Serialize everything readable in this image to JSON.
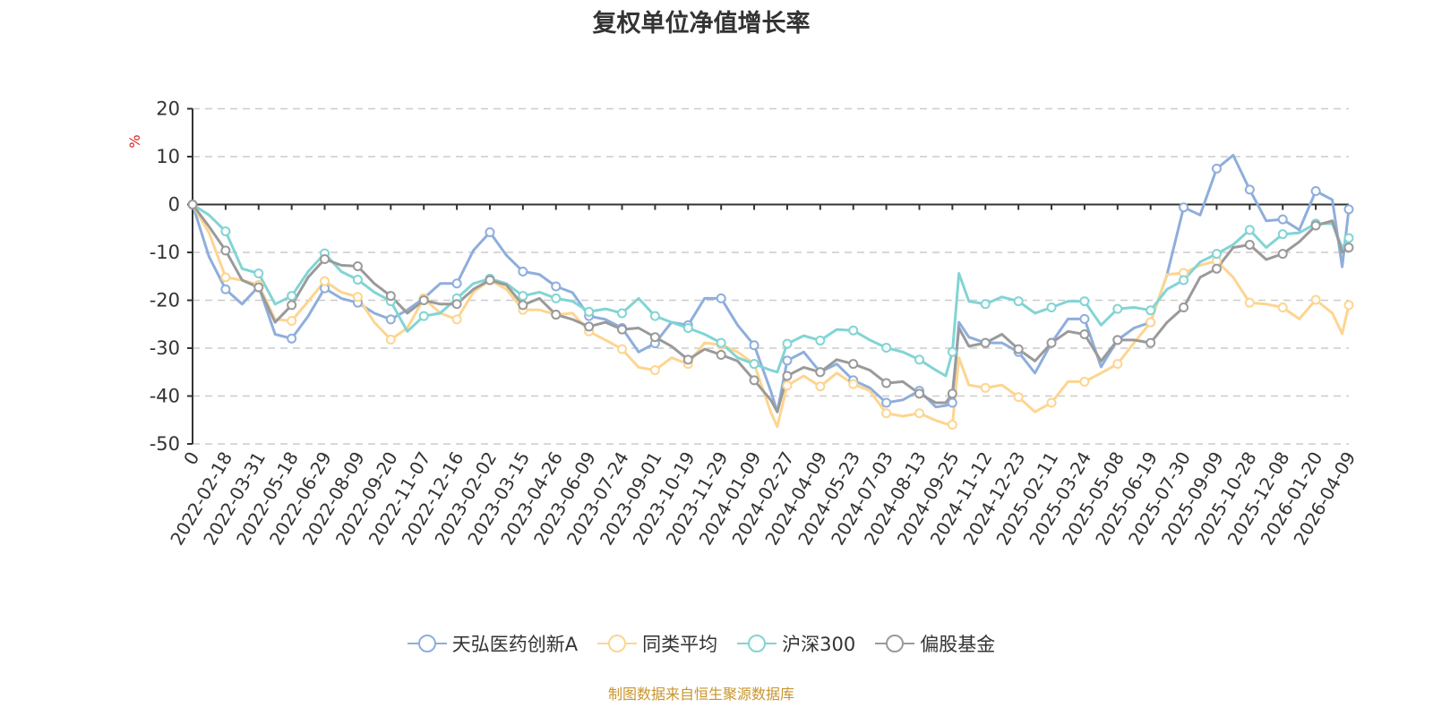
{
  "chart_data": {
    "type": "line",
    "title": "复权单位净值增长率",
    "ylabel": "%",
    "ylim": [
      -50,
      20
    ],
    "yticks": [
      20,
      10,
      0,
      -10,
      -20,
      -30,
      -40,
      -50
    ],
    "grid": true,
    "legend_position": "bottom",
    "x_tick_labels": [
      "0",
      "2022-02-18",
      "2022-03-31",
      "2022-05-18",
      "2022-06-29",
      "2022-08-09",
      "2022-09-20",
      "2022-11-07",
      "2022-12-16",
      "2023-02-02",
      "2023-03-15",
      "2023-04-26",
      "2023-06-09",
      "2023-07-24",
      "2023-09-01",
      "2023-10-19",
      "2023-11-29",
      "2024-01-09",
      "2024-02-27",
      "2024-04-09",
      "2024-05-23",
      "2024-07-03",
      "2024-08-13",
      "2024-09-25",
      "2024-11-12",
      "2024-12-23",
      "2025-02-11",
      "2025-03-24",
      "2025-05-08",
      "2025-06-19",
      "2025-07-30",
      "2025-09-09",
      "2025-10-28",
      "2025-12-08",
      "2026-01-20",
      "2026-04-09"
    ],
    "x": [
      0,
      0.5,
      1,
      1.5,
      2,
      2.5,
      3,
      3.5,
      4,
      4.5,
      5,
      5.5,
      6,
      6.5,
      7,
      7.5,
      8,
      8.5,
      9,
      9.5,
      10,
      10.5,
      11,
      11.5,
      12,
      12.5,
      13,
      13.5,
      14,
      14.5,
      15,
      15.5,
      16,
      16.5,
      17,
      17.5,
      17.7,
      18,
      18.5,
      19,
      19.5,
      20,
      20.5,
      21,
      21.5,
      22,
      22.5,
      22.8,
      23,
      23.2,
      23.5,
      24,
      24.5,
      25,
      25.5,
      26,
      26.5,
      27,
      27.5,
      28,
      28.5,
      29,
      29.5,
      30,
      30.5,
      31,
      31.5,
      32,
      32.5,
      33,
      33.5,
      34,
      34.5,
      34.8,
      35
    ],
    "series": [
      {
        "name": "天弘医药创新A",
        "color": "#8eaedc",
        "values": [
          0,
          -10.9,
          -17.7,
          -20.8,
          -17.1,
          -27.1,
          -28,
          -23.3,
          -17.5,
          -19.6,
          -20.5,
          -22.7,
          -24,
          -22,
          -19.6,
          -16.5,
          -16.5,
          -9.6,
          -5.8,
          -10.6,
          -14,
          -14.6,
          -17.1,
          -18.4,
          -23.3,
          -24,
          -25.8,
          -30.8,
          -29,
          -24.6,
          -25.2,
          -19.6,
          -19.6,
          -25.2,
          -29.4,
          -38.9,
          -43.3,
          -32.6,
          -30.8,
          -35,
          -33.3,
          -36.7,
          -38.3,
          -41.4,
          -40.8,
          -38.9,
          -42.3,
          -42,
          -41.4,
          -24.6,
          -27.7,
          -28.9,
          -28.9,
          -30.8,
          -35.2,
          -28.9,
          -23.9,
          -23.9,
          -33.9,
          -28.3,
          -25.8,
          -24.6,
          -14.6,
          -0.6,
          -2.2,
          7.5,
          10.3,
          3.1,
          -3.4,
          -3.1,
          -5.3,
          2.8,
          1,
          -13,
          -1
        ]
      },
      {
        "name": "同类平均",
        "color": "#fdd590",
        "values": [
          0,
          -5.9,
          -15.2,
          -15.8,
          -16.8,
          -24,
          -24.3,
          -20.2,
          -16,
          -18.3,
          -19.3,
          -24.6,
          -28.2,
          -25.8,
          -19.6,
          -22.7,
          -24,
          -18.3,
          -15.8,
          -17.7,
          -22,
          -22,
          -23,
          -22.7,
          -26.5,
          -28.3,
          -30.2,
          -34,
          -34.6,
          -32,
          -33.3,
          -28.9,
          -29.3,
          -30.8,
          -33.3,
          -43.3,
          -46.4,
          -37.8,
          -35.8,
          -38,
          -35.2,
          -37.5,
          -38.9,
          -43.6,
          -44.2,
          -43.6,
          -45.1,
          -45.8,
          -46,
          -32,
          -37.7,
          -38.3,
          -37.7,
          -40.2,
          -43.3,
          -41.4,
          -37,
          -37,
          -35.2,
          -33.3,
          -28.9,
          -24.6,
          -14.6,
          -14.3,
          -12.7,
          -11.8,
          -15.2,
          -20.5,
          -20.8,
          -21.5,
          -23.9,
          -19.9,
          -22.7,
          -27,
          -21
        ]
      },
      {
        "name": "沪深300",
        "color": "#82d4d4",
        "values": [
          0,
          -2.2,
          -5.6,
          -13.4,
          -14.4,
          -20.8,
          -19.1,
          -14,
          -10.2,
          -14,
          -15.7,
          -18.3,
          -20.2,
          -26.5,
          -23.3,
          -22.7,
          -19.6,
          -16.5,
          -15.5,
          -16.5,
          -19.1,
          -18.3,
          -19.6,
          -20.2,
          -22.4,
          -21.8,
          -22.7,
          -19.6,
          -23.3,
          -24.6,
          -25.8,
          -27.1,
          -28.9,
          -32,
          -33.3,
          -34.6,
          -35,
          -29.1,
          -27.4,
          -28.4,
          -26.1,
          -26.3,
          -28.3,
          -29.9,
          -30.8,
          -32.4,
          -34.6,
          -35.8,
          -30.8,
          -14.4,
          -20.2,
          -20.8,
          -19.3,
          -20.2,
          -22.7,
          -21.5,
          -20.2,
          -20.2,
          -25.2,
          -21.8,
          -21.5,
          -22.1,
          -17.7,
          -15.8,
          -12,
          -10.3,
          -8.4,
          -5.3,
          -9,
          -6.2,
          -5.9,
          -4,
          -4,
          -9,
          -7
        ]
      },
      {
        "name": "偏股基金",
        "color": "#9a9a9a",
        "values": [
          0,
          -4.6,
          -9.6,
          -15.8,
          -17.3,
          -24.6,
          -21,
          -15.2,
          -11.4,
          -12.7,
          -12.9,
          -16.5,
          -19.1,
          -22.7,
          -20,
          -20.8,
          -20.8,
          -17.7,
          -15.8,
          -16.8,
          -21,
          -19.6,
          -23,
          -24,
          -25.5,
          -24.6,
          -26.1,
          -25.8,
          -27.7,
          -29.6,
          -32.4,
          -30.2,
          -31.4,
          -32.7,
          -36.7,
          -40.8,
          -43.3,
          -35.8,
          -34,
          -35,
          -32.4,
          -33.3,
          -34.6,
          -37.3,
          -37,
          -39.5,
          -41.4,
          -41.4,
          -39.5,
          -25.8,
          -29.6,
          -28.9,
          -27.1,
          -30.2,
          -32.7,
          -28.9,
          -26.5,
          -27.1,
          -32.7,
          -28.3,
          -28.3,
          -28.9,
          -24.6,
          -21.5,
          -15.2,
          -13.4,
          -9,
          -8.4,
          -11.5,
          -10.3,
          -7.8,
          -4.4,
          -3.4,
          -10,
          -9
        ]
      }
    ]
  },
  "footer": "制图数据来自恒生聚源数据库"
}
